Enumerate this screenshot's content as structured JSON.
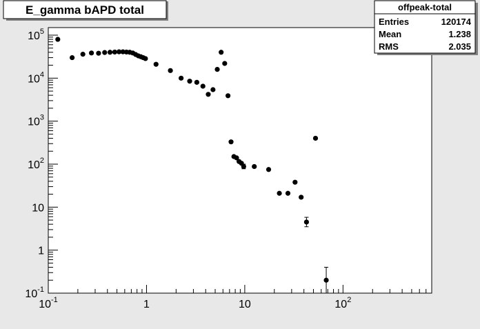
{
  "chart_data": {
    "type": "scatter",
    "title": "E_gamma bAPD total",
    "xlabel": "",
    "ylabel": "",
    "x_scale": "log",
    "y_scale": "log",
    "xlim": [
      0.1,
      800
    ],
    "ylim": [
      0.1,
      150000
    ],
    "grid": false,
    "x_ticks": [
      {
        "v": 0.1,
        "base": "10",
        "exp": "-1"
      },
      {
        "v": 1,
        "base": "1",
        "exp": ""
      },
      {
        "v": 10,
        "base": "10",
        "exp": ""
      },
      {
        "v": 100,
        "base": "10",
        "exp": "2"
      }
    ],
    "y_ticks": [
      {
        "v": 0.1,
        "base": "10",
        "exp": "-1"
      },
      {
        "v": 1,
        "base": "1",
        "exp": ""
      },
      {
        "v": 10,
        "base": "10",
        "exp": ""
      },
      {
        "v": 100,
        "base": "10",
        "exp": "2"
      },
      {
        "v": 1000,
        "base": "10",
        "exp": "3"
      },
      {
        "v": 10000,
        "base": "10",
        "exp": "4"
      },
      {
        "v": 100000,
        "base": "10",
        "exp": "5"
      }
    ],
    "stats_box": {
      "name": "offpeak-total",
      "rows": [
        {
          "label": "Entries",
          "value": "120174"
        },
        {
          "label": "Mean",
          "value": "1.238"
        },
        {
          "label": "RMS",
          "value": "2.035"
        }
      ]
    },
    "points": [
      {
        "x": 0.125,
        "y": 80000
      },
      {
        "x": 0.175,
        "y": 30000
      },
      {
        "x": 0.225,
        "y": 36000
      },
      {
        "x": 0.275,
        "y": 38500
      },
      {
        "x": 0.325,
        "y": 38000
      },
      {
        "x": 0.375,
        "y": 39500
      },
      {
        "x": 0.425,
        "y": 40000
      },
      {
        "x": 0.475,
        "y": 40500
      },
      {
        "x": 0.525,
        "y": 41000
      },
      {
        "x": 0.575,
        "y": 41000
      },
      {
        "x": 0.625,
        "y": 40500
      },
      {
        "x": 0.675,
        "y": 40000
      },
      {
        "x": 0.725,
        "y": 38500
      },
      {
        "x": 0.775,
        "y": 35500
      },
      {
        "x": 0.825,
        "y": 33000
      },
      {
        "x": 0.875,
        "y": 31500
      },
      {
        "x": 0.925,
        "y": 30000
      },
      {
        "x": 0.975,
        "y": 28500
      },
      {
        "x": 1.25,
        "y": 21000
      },
      {
        "x": 1.75,
        "y": 15000
      },
      {
        "x": 2.25,
        "y": 10000
      },
      {
        "x": 2.75,
        "y": 8500
      },
      {
        "x": 3.25,
        "y": 8000
      },
      {
        "x": 3.75,
        "y": 6500
      },
      {
        "x": 4.25,
        "y": 4200
      },
      {
        "x": 4.75,
        "y": 5400
      },
      {
        "x": 5.25,
        "y": 16000
      },
      {
        "x": 5.75,
        "y": 40000
      },
      {
        "x": 6.25,
        "y": 22000
      },
      {
        "x": 6.75,
        "y": 3900
      },
      {
        "x": 7.25,
        "y": 330
      },
      {
        "x": 7.75,
        "y": 150
      },
      {
        "x": 8.25,
        "y": 140
      },
      {
        "x": 8.75,
        "y": 115
      },
      {
        "x": 9.25,
        "y": 105
      },
      {
        "x": 9.75,
        "y": 88,
        "err": [
          78,
          100
        ]
      },
      {
        "x": 12.5,
        "y": 88
      },
      {
        "x": 17.5,
        "y": 75
      },
      {
        "x": 22.5,
        "y": 21
      },
      {
        "x": 27.5,
        "y": 21
      },
      {
        "x": 32.5,
        "y": 38
      },
      {
        "x": 37.5,
        "y": 17
      },
      {
        "x": 42.5,
        "y": 4.5,
        "err": [
          3.5,
          5.8
        ]
      },
      {
        "x": 52.5,
        "y": 400
      },
      {
        "x": 67.5,
        "y": 0.2,
        "err": [
          0.1,
          0.4
        ]
      }
    ]
  }
}
